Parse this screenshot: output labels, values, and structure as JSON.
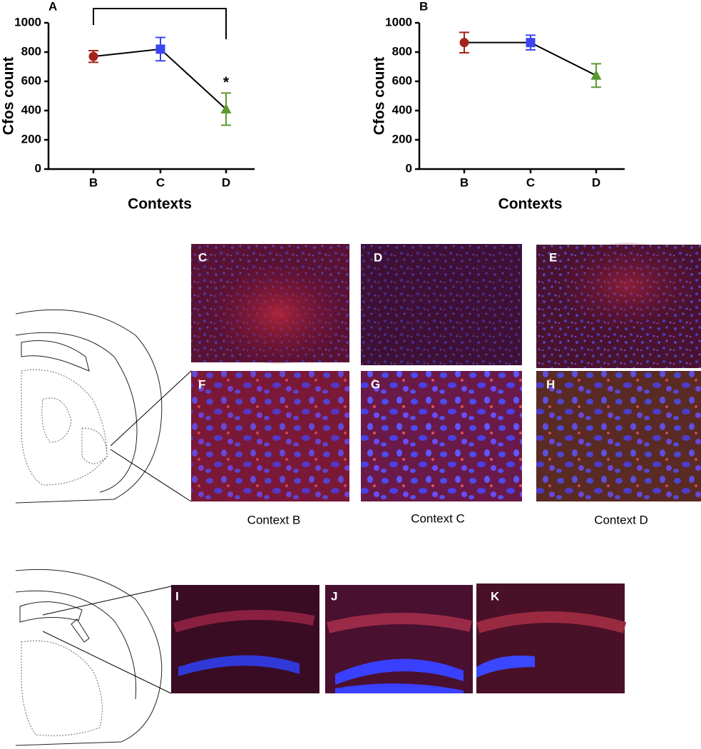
{
  "chart_data": [
    {
      "type": "line",
      "panel": "A",
      "y_label": "Cfos count",
      "x_label": "Contexts",
      "categories": [
        "B",
        "C",
        "D"
      ],
      "values": [
        770,
        820,
        410
      ],
      "errors": [
        40,
        80,
        110
      ],
      "colors": [
        "#a3231a",
        "#3a46f0",
        "#5c9a2c"
      ],
      "markers": [
        "circle",
        "square",
        "triangle"
      ],
      "ylim": [
        0,
        1000
      ],
      "yticks": [
        0,
        200,
        400,
        600,
        800,
        1000
      ],
      "annotation": "*"
    },
    {
      "type": "line",
      "panel": "B",
      "y_label": "Cfos count",
      "x_label": "Contexts",
      "categories": [
        "B",
        "C",
        "D"
      ],
      "values": [
        865,
        865,
        640
      ],
      "errors": [
        70,
        50,
        80
      ],
      "colors": [
        "#a3231a",
        "#3a46f0",
        "#5c9a2c"
      ],
      "markers": [
        "circle",
        "square",
        "triangle"
      ],
      "ylim": [
        0,
        1000
      ],
      "yticks": [
        0,
        200,
        400,
        600,
        800,
        1000
      ]
    }
  ],
  "images": {
    "top": [
      "C",
      "D",
      "E"
    ],
    "bottom": [
      "F",
      "G",
      "H"
    ],
    "captions": [
      "Context B",
      "Context C",
      "Context D"
    ],
    "hippocampus": [
      "I",
      "J",
      "K"
    ]
  }
}
